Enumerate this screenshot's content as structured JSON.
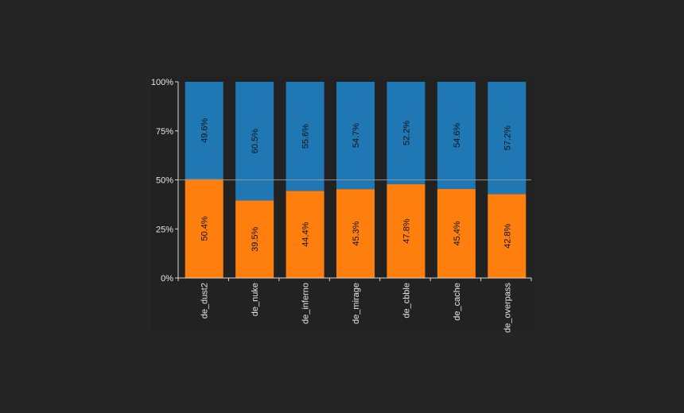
{
  "chart_data": {
    "type": "bar",
    "stacked": true,
    "normalized": true,
    "categories": [
      "de_dust2",
      "de_nuke",
      "de_inferno",
      "de_mirage",
      "de_cbble",
      "de_cache",
      "de_overpass"
    ],
    "series": [
      {
        "name": "bottom",
        "color": "#ff7f0e",
        "values": [
          50.4,
          39.5,
          44.4,
          45.3,
          47.8,
          45.4,
          42.8
        ]
      },
      {
        "name": "top",
        "color": "#1f77b4",
        "values": [
          49.6,
          60.5,
          55.6,
          54.7,
          52.2,
          54.6,
          57.2
        ]
      }
    ],
    "labels": {
      "bottom": [
        "50.4%",
        "39.5%",
        "44.4%",
        "45.3%",
        "47.8%",
        "45.4%",
        "42.8%"
      ],
      "top": [
        "49.6%",
        "60.5%",
        "55.6%",
        "54.7%",
        "52.2%",
        "54.6%",
        "57.2%"
      ]
    },
    "y_ticks": [
      "0%",
      "25%",
      "50%",
      "75%",
      "100%"
    ],
    "y_tick_values": [
      0,
      25,
      50,
      75,
      100
    ],
    "ylim": [
      0,
      100
    ],
    "reference_line": 50,
    "title": "",
    "xlabel": "",
    "ylabel": ""
  }
}
